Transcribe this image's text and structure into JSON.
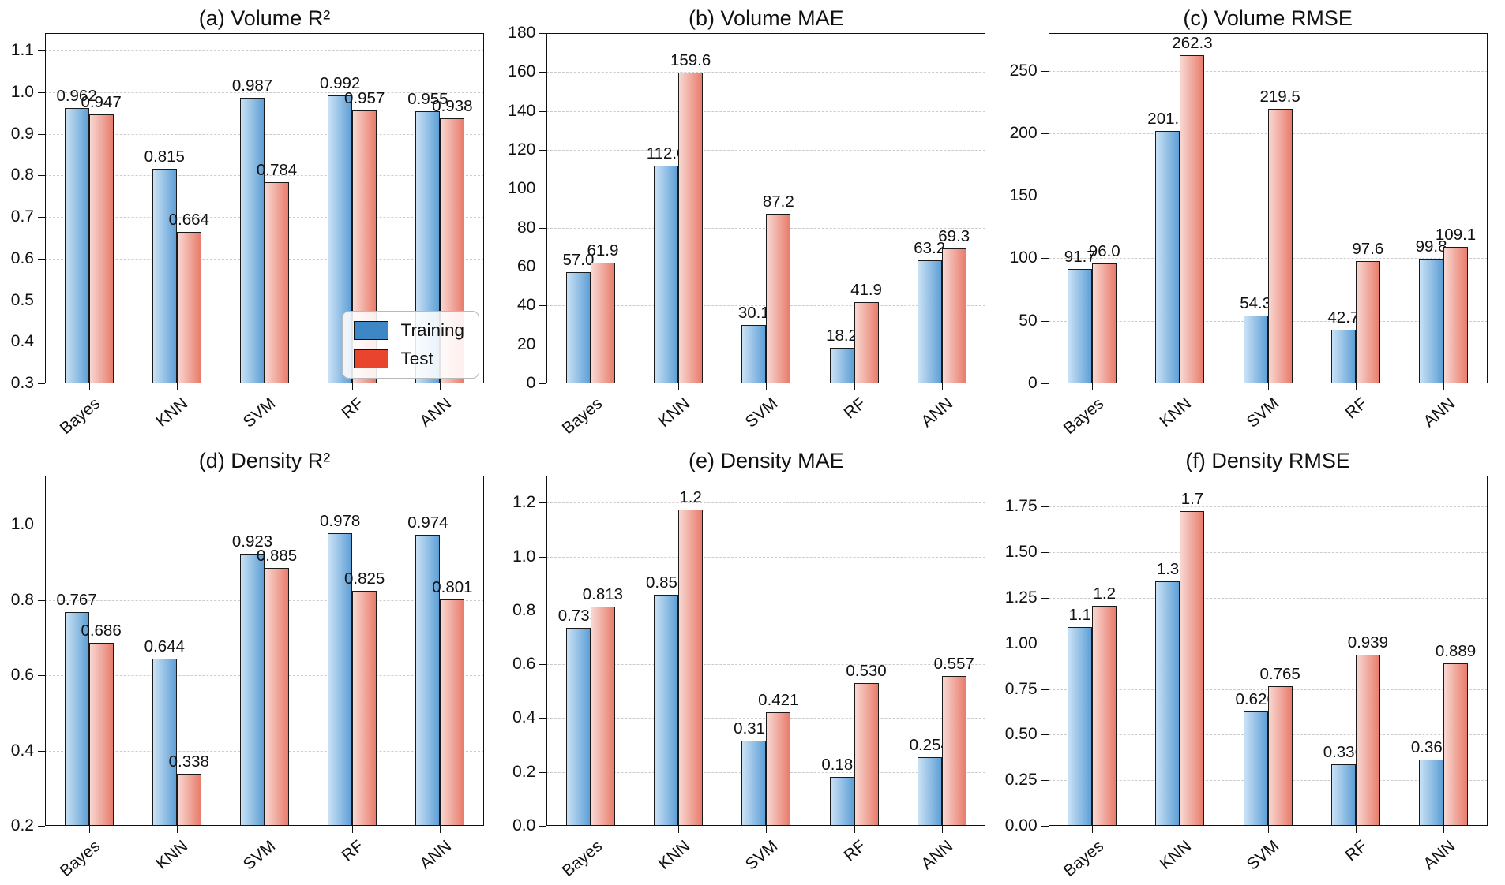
{
  "figure": {
    "background": "#ffffff",
    "columns": 3,
    "rows": 2
  },
  "colors": {
    "training_bar_gradient_left": "#cae2f5",
    "training_bar_gradient_right": "#5e9fd6",
    "test_bar_gradient_left": "#f8d8d2",
    "test_bar_gradient_right": "#e87c6b",
    "training_legend_swatch": "#3d87c6",
    "test_legend_swatch": "#e8442e",
    "bar_border": "#1a1a1a",
    "grid_line": "#cccccc",
    "axis_spine": "#111111",
    "text": "#111111"
  },
  "legend": {
    "items": [
      {
        "key": "training",
        "label": "Training",
        "color": "#3d87c6"
      },
      {
        "key": "test",
        "label": "Test",
        "color": "#e8442e"
      }
    ]
  },
  "chart_data": [
    {
      "id": "a",
      "type": "bar",
      "title": "(a) Volume R²",
      "categories": [
        "Bayes",
        "KNN",
        "SVM",
        "RF",
        "ANN"
      ],
      "series": [
        {
          "name": "Training",
          "values": [
            0.962,
            0.815,
            0.987,
            0.992,
            0.955
          ],
          "labels": [
            "0.962",
            "0.815",
            "0.987",
            "0.992",
            "0.955"
          ]
        },
        {
          "name": "Test",
          "values": [
            0.947,
            0.664,
            0.784,
            0.957,
            0.938
          ],
          "labels": [
            "0.947",
            "0.664",
            "0.784",
            "0.957",
            "0.938"
          ]
        }
      ],
      "ylim": [
        0.3,
        1.142
      ],
      "yticks": {
        "values": [
          0.3,
          0.4,
          0.5,
          0.6,
          0.7,
          0.8,
          0.9,
          1.0,
          1.1
        ],
        "labels": [
          "0.3",
          "0.4",
          "0.5",
          "0.6",
          "0.7",
          "0.8",
          "0.9",
          "1.0",
          "1.1"
        ]
      },
      "grid": true,
      "legend": true,
      "legend_position": "lower-right"
    },
    {
      "id": "b",
      "type": "bar",
      "title": "(b) Volume MAE",
      "categories": [
        "Bayes",
        "KNN",
        "SVM",
        "RF",
        "ANN"
      ],
      "series": [
        {
          "name": "Training",
          "values": [
            57.0,
            112.0,
            30.1,
            18.2,
            63.2
          ],
          "labels": [
            "57.0",
            "112.0",
            "30.1",
            "18.2",
            "63.2"
          ]
        },
        {
          "name": "Test",
          "values": [
            61.9,
            159.6,
            87.2,
            41.9,
            69.3
          ],
          "labels": [
            "61.9",
            "159.6",
            "87.2",
            "41.9",
            "69.3"
          ]
        }
      ],
      "ylim": [
        0,
        180
      ],
      "yticks": {
        "values": [
          0,
          20,
          40,
          60,
          80,
          100,
          120,
          140,
          160,
          180
        ],
        "labels": [
          "0",
          "20",
          "40",
          "60",
          "80",
          "100",
          "120",
          "140",
          "160",
          "180"
        ]
      },
      "grid": true,
      "legend": false
    },
    {
      "id": "c",
      "type": "bar",
      "title": "(c) Volume RMSE",
      "categories": [
        "Bayes",
        "KNN",
        "SVM",
        "RF",
        "ANN"
      ],
      "series": [
        {
          "name": "Training",
          "values": [
            91.7,
            201.8,
            54.3,
            42.7,
            99.8
          ],
          "labels": [
            "91.7",
            "201.8",
            "54.3",
            "42.7",
            "99.8"
          ]
        },
        {
          "name": "Test",
          "values": [
            96.0,
            262.3,
            219.5,
            97.6,
            109.1
          ],
          "labels": [
            "96.0",
            "262.3",
            "219.5",
            "97.6",
            "109.1"
          ]
        }
      ],
      "ylim": [
        0,
        280
      ],
      "yticks": {
        "values": [
          0,
          50,
          100,
          150,
          200,
          250
        ],
        "labels": [
          "0",
          "50",
          "100",
          "150",
          "200",
          "250"
        ]
      },
      "grid": true,
      "legend": false
    },
    {
      "id": "d",
      "type": "bar",
      "title": "(d) Density R²",
      "categories": [
        "Bayes",
        "KNN",
        "SVM",
        "RF",
        "ANN"
      ],
      "series": [
        {
          "name": "Training",
          "values": [
            0.767,
            0.644,
            0.923,
            0.978,
            0.974
          ],
          "labels": [
            "0.767",
            "0.644",
            "0.923",
            "0.978",
            "0.974"
          ]
        },
        {
          "name": "Test",
          "values": [
            0.686,
            0.338,
            0.885,
            0.825,
            0.801
          ],
          "labels": [
            "0.686",
            "0.338",
            "0.885",
            "0.825",
            "0.801"
          ]
        }
      ],
      "ylim": [
        0.2,
        1.13
      ],
      "yticks": {
        "values": [
          0.2,
          0.4,
          0.6,
          0.8,
          1.0
        ],
        "labels": [
          "0.2",
          "0.4",
          "0.6",
          "0.8",
          "1.0"
        ]
      },
      "grid": true,
      "legend": false
    },
    {
      "id": "e",
      "type": "bar",
      "title": "(e) Density MAE",
      "categories": [
        "Bayes",
        "KNN",
        "SVM",
        "RF",
        "ANN"
      ],
      "series": [
        {
          "name": "Training",
          "values": [
            0.735,
            0.858,
            0.316,
            0.183,
            0.254
          ],
          "labels": [
            "0.735",
            "0.858",
            "0.316",
            "0.183",
            "0.254"
          ]
        },
        {
          "name": "Test",
          "values": [
            0.813,
            1.175,
            0.421,
            0.53,
            0.557
          ],
          "labels": [
            "0.813",
            "1.2",
            "0.421",
            "0.530",
            "0.557"
          ]
        }
      ],
      "ylim": [
        0,
        1.3
      ],
      "yticks": {
        "values": [
          0.0,
          0.2,
          0.4,
          0.6,
          0.8,
          1.0,
          1.2
        ],
        "labels": [
          "0.0",
          "0.2",
          "0.4",
          "0.6",
          "0.8",
          "1.0",
          "1.2"
        ]
      },
      "grid": true,
      "legend": false
    },
    {
      "id": "f",
      "type": "bar",
      "title": "(f) Density RMSE",
      "categories": [
        "Bayes",
        "KNN",
        "SVM",
        "RF",
        "ANN"
      ],
      "series": [
        {
          "name": "Training",
          "values": [
            1.09,
            1.34,
            0.626,
            0.336,
            0.362
          ],
          "labels": [
            "1.1",
            "1.3",
            "0.626",
            "0.336",
            "0.362"
          ]
        },
        {
          "name": "Test",
          "values": [
            1.205,
            1.725,
            0.765,
            0.939,
            0.889
          ],
          "labels": [
            "1.2",
            "1.7",
            "0.765",
            "0.939",
            "0.889"
          ]
        }
      ],
      "ylim": [
        0,
        1.92
      ],
      "yticks": {
        "values": [
          0.0,
          0.25,
          0.5,
          0.75,
          1.0,
          1.25,
          1.5,
          1.75
        ],
        "labels": [
          "0.00",
          "0.25",
          "0.50",
          "0.75",
          "1.00",
          "1.25",
          "1.50",
          "1.75"
        ]
      },
      "grid": true,
      "legend": false
    }
  ]
}
